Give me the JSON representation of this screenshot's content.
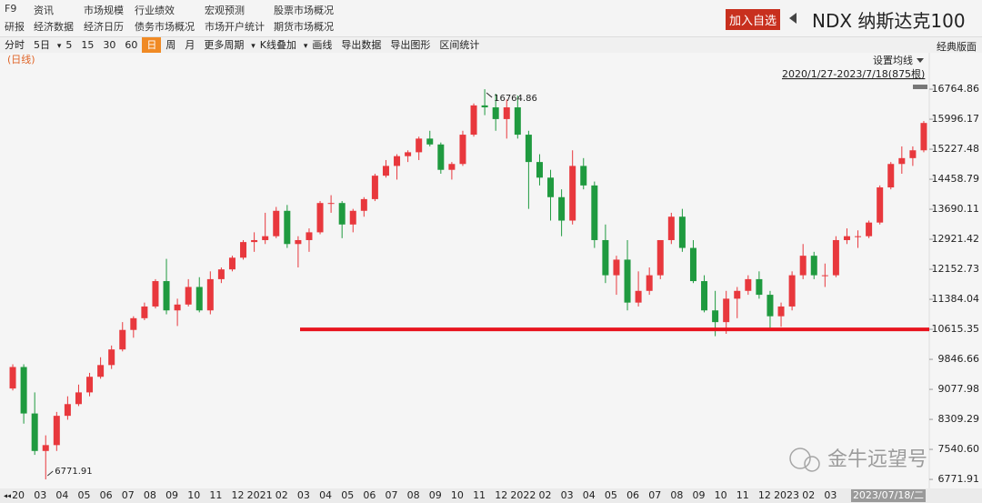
{
  "header": {
    "menu": [
      [
        "F9",
        "资讯",
        "市场规模",
        "行业绩效",
        "宏观预测",
        "股票市场概况"
      ],
      [
        "研报",
        "经济数据",
        "经济日历",
        "债务市场概况",
        "市场开户统计",
        "期货市场概况"
      ]
    ],
    "button": "加入自选",
    "title": "NDX 纳斯达克100"
  },
  "toolbar": {
    "items": [
      "分时",
      "5日",
      "5",
      "15",
      "30",
      "60",
      "日",
      "周",
      "月",
      "更多周期",
      "K线叠加",
      "画线",
      "导出数据",
      "导出图形",
      "区间统计"
    ],
    "dropdowns": [
      "5日",
      "K线叠加"
    ],
    "selected": "日",
    "right": "经典版面"
  },
  "watermark": "金牛远望号",
  "chart_data": {
    "type": "candlestick",
    "period_label": "(日线)",
    "ma_button": "设置均线",
    "range_label": "2020/1/27-2023/7/18(875根)",
    "cursor_label": "2023/07/18/二",
    "categories": [
      "20",
      null,
      "03",
      null,
      "04",
      null,
      "05",
      null,
      "06",
      null,
      "07",
      null,
      "08",
      null,
      "09",
      null,
      "10",
      null,
      "11",
      null,
      "12",
      null,
      "2021",
      null,
      "02",
      null,
      "03",
      null,
      "04",
      null,
      "05",
      null,
      "06",
      null,
      "07",
      null,
      "08",
      null,
      "09",
      null,
      "10",
      null,
      "11",
      null,
      "12",
      null,
      "2022",
      null,
      "02",
      null,
      "03",
      null,
      "04",
      null,
      "05",
      null,
      "06",
      null,
      "07",
      null,
      "08",
      null,
      "09",
      null,
      "10",
      null,
      "11",
      null,
      "12",
      null,
      "2023",
      null,
      "02",
      null,
      "03",
      null,
      null,
      null,
      null,
      null,
      null,
      null,
      null,
      null
    ],
    "open": [
      9100,
      9650,
      8460,
      7500,
      7650,
      8400,
      8700,
      9000,
      9400,
      9700,
      10100,
      10600,
      10900,
      11200,
      11850,
      11100,
      11250,
      11700,
      11100,
      11900,
      12150,
      12450,
      12850,
      12900,
      13000,
      13650,
      12800,
      12900,
      13100,
      13850,
      13850,
      13300,
      13650,
      13950,
      14550,
      14800,
      15050,
      15150,
      15500,
      15350,
      14700,
      14850,
      15600,
      16350,
      16300,
      16000,
      16300,
      15600,
      14900,
      14500,
      14000,
      13400,
      14800,
      14300,
      12900,
      12000,
      12400,
      11300,
      11600,
      12000,
      12900,
      13500,
      12700,
      11850,
      11100,
      10800,
      11400,
      11600,
      11900,
      11500,
      10950,
      11200,
      12000,
      12500,
      12000,
      12000,
      12900,
      13000,
      13000,
      13350,
      14250,
      14850,
      15000,
      15200
    ],
    "high": [
      9720,
      9720,
      9000,
      7900,
      8500,
      8900,
      9200,
      9500,
      9900,
      10200,
      10800,
      10950,
      11300,
      11900,
      12420,
      11400,
      11900,
      11950,
      12100,
      12200,
      12500,
      12900,
      13100,
      13600,
      13750,
      13800,
      13000,
      13200,
      13900,
      14050,
      13900,
      13700,
      14000,
      14600,
      14950,
      15100,
      15200,
      15550,
      15700,
      15400,
      14900,
      15700,
      16400,
      16764.86,
      16650,
      16500,
      16600,
      15700,
      15100,
      14700,
      14200,
      15200,
      15000,
      14400,
      13300,
      12500,
      12900,
      12100,
      12200,
      12900,
      13600,
      13700,
      12900,
      12000,
      11600,
      11600,
      11700,
      12000,
      12100,
      11600,
      11300,
      12100,
      12800,
      12600,
      12300,
      13000,
      13200,
      13150,
      13400,
      14300,
      14900,
      15300,
      15300,
      15950
    ],
    "low": [
      9050,
      8200,
      7400,
      6771.91,
      7500,
      8300,
      8650,
      8900,
      9350,
      9600,
      10050,
      10400,
      10850,
      11150,
      11000,
      10700,
      11200,
      11050,
      11000,
      11800,
      12100,
      12400,
      12600,
      12800,
      12950,
      12700,
      12200,
      12600,
      13050,
      13600,
      12950,
      13100,
      13500,
      13900,
      14500,
      14450,
      14900,
      14950,
      15300,
      14600,
      14450,
      14800,
      15550,
      16100,
      15700,
      15500,
      15500,
      13700,
      14300,
      13400,
      13000,
      13300,
      14200,
      12700,
      11800,
      11500,
      11100,
      11200,
      11500,
      11900,
      12800,
      12600,
      11800,
      11050,
      10440,
      10500,
      10900,
      11500,
      11400,
      10620,
      10680,
      11100,
      11900,
      11900,
      11700,
      11950,
      12800,
      12700,
      12950,
      13300,
      14200,
      14600,
      14800,
      15150
    ],
    "close": [
      9650,
      8460,
      7500,
      7650,
      8400,
      8700,
      9000,
      9400,
      9700,
      10100,
      10600,
      10900,
      11200,
      11850,
      11100,
      11250,
      11700,
      11100,
      11900,
      12150,
      12450,
      12850,
      12900,
      13000,
      13650,
      12800,
      12900,
      13100,
      13850,
      13850,
      13300,
      13650,
      13950,
      14550,
      14800,
      15050,
      15150,
      15500,
      15350,
      14700,
      14850,
      15600,
      16350,
      16300,
      16000,
      16300,
      15600,
      14900,
      14500,
      14000,
      13400,
      14800,
      14300,
      12900,
      12000,
      12400,
      11300,
      11600,
      12000,
      12900,
      13500,
      12700,
      11850,
      11100,
      10800,
      11400,
      11600,
      11900,
      11500,
      10950,
      11200,
      12000,
      12500,
      12000,
      12000,
      12900,
      13000,
      13000,
      13350,
      14250,
      14850,
      15000,
      15200,
      15900
    ],
    "up_color": "#e8383d",
    "down_color": "#1f9a3f",
    "ylim": [
      6540,
      17605
    ],
    "yticks": [
      16764.86,
      15996.17,
      15227.48,
      14458.79,
      13690.11,
      12921.42,
      12152.73,
      11384.04,
      10615.35,
      9846.66,
      9077.98,
      8309.29,
      {
        "value": 7540.6,
        "label": "7540.60"
      },
      6771.91
    ],
    "reference_line": {
      "value": 10615,
      "color": "#e8141e"
    },
    "max_marker": "chart_data.high.43",
    "min_marker": "chart_data.low.3"
  }
}
